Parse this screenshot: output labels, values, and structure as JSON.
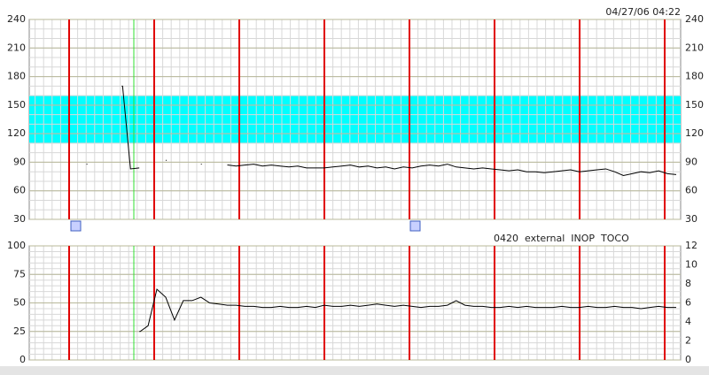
{
  "chart_data": [
    {
      "type": "line",
      "annotation": "04/27/06 04:22",
      "ylim": [
        30,
        240
      ],
      "yticks": [
        30,
        60,
        90,
        120,
        150,
        180,
        210,
        240
      ],
      "y2lim": [
        30,
        240
      ],
      "y2ticks": [
        30,
        60,
        90,
        120,
        150,
        180,
        210,
        240
      ],
      "normal_range": [
        110,
        160
      ],
      "normal_range_color": "#00ffff",
      "grid": true,
      "series": [
        {
          "color": "#000000",
          "values": [
            null,
            null,
            null,
            null,
            null,
            null,
            88,
            null,
            null,
            null,
            170,
            83,
            84,
            null,
            null,
            92,
            null,
            null,
            null,
            88,
            null,
            null,
            87,
            86,
            87,
            88,
            86,
            87,
            86,
            85,
            86,
            84,
            84,
            84,
            85,
            86,
            87,
            85,
            86,
            84,
            85,
            83,
            85,
            84,
            86,
            87,
            86,
            88,
            85,
            84,
            83,
            84,
            83,
            82,
            81,
            82,
            80,
            80,
            79,
            80,
            81,
            82,
            80,
            81,
            82,
            83,
            80,
            76,
            78,
            80,
            79,
            81,
            78,
            77
          ]
        }
      ]
    },
    {
      "type": "line",
      "annotations": [
        "0420",
        "external",
        "INOP",
        "TOCO"
      ],
      "annotation_colors": [
        "#222222",
        "#222222",
        "#ff0000",
        "#222222"
      ],
      "ylim": [
        0,
        100
      ],
      "yticks": [
        0,
        25,
        50,
        75,
        100
      ],
      "y2lim": [
        0,
        12
      ],
      "y2ticks": [
        0,
        2,
        4,
        6,
        8,
        10,
        12
      ],
      "grid": true,
      "series": [
        {
          "color": "#000000",
          "values": [
            null,
            null,
            null,
            null,
            null,
            null,
            null,
            null,
            null,
            null,
            null,
            null,
            25,
            30,
            62,
            55,
            35,
            52,
            52,
            55,
            50,
            49,
            48,
            48,
            47,
            47,
            46,
            46,
            47,
            46,
            46,
            47,
            46,
            48,
            47,
            47,
            48,
            47,
            48,
            49,
            48,
            47,
            48,
            47,
            46,
            47,
            47,
            48,
            52,
            48,
            47,
            47,
            46,
            46,
            47,
            46,
            47,
            46,
            46,
            46,
            47,
            46,
            46,
            47,
            46,
            46,
            47,
            46,
            46,
            45,
            46,
            47,
            46,
            46
          ]
        }
      ]
    }
  ]
}
